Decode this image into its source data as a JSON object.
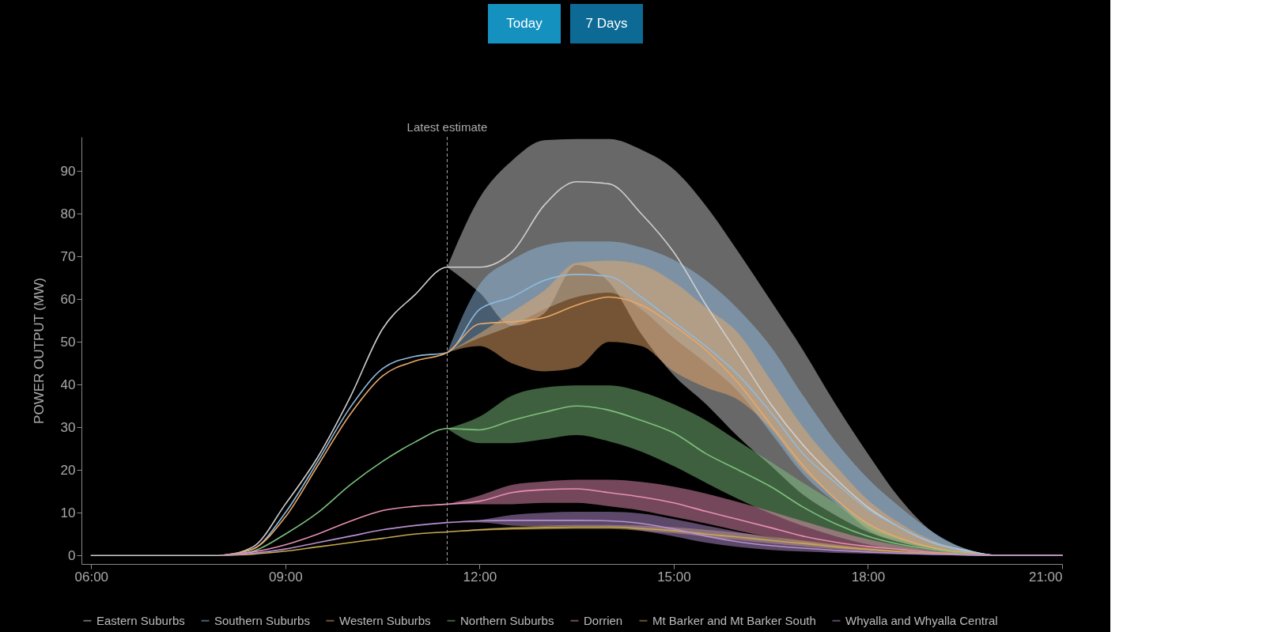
{
  "chart_data": {
    "type": "line",
    "ylabel": "POWER OUTPUT (MW)",
    "annotations": [
      "Today",
      "7 Days"
    ],
    "x": [
      6,
      7,
      8,
      8.5,
      9,
      9.5,
      10,
      10.5,
      11,
      11.5,
      12,
      12.5,
      13,
      13.5,
      14,
      14.5,
      15,
      15.5,
      16,
      16.5,
      17,
      17.5,
      18,
      18.5,
      19,
      19.5,
      20,
      21
    ],
    "xlim": [
      5.85,
      21
    ],
    "xticks": [
      {
        "value": 6,
        "label": "06:00"
      },
      {
        "value": 9,
        "label": "09:00"
      },
      {
        "value": 12,
        "label": "12:00"
      },
      {
        "value": 15,
        "label": "15:00"
      },
      {
        "value": 18,
        "label": "18:00"
      },
      {
        "value": 21,
        "label": "21:00"
      }
    ],
    "ylim": [
      -2,
      98
    ],
    "yticks": [
      0,
      10,
      20,
      30,
      40,
      50,
      60,
      70,
      80,
      90
    ],
    "grid": false,
    "legend": "bottom",
    "line_style": "solid",
    "marker": "none",
    "ref_lines": [
      {
        "axis": "x",
        "value": 11.5,
        "label": "Latest estimate",
        "color": "#aaaaaa",
        "line_style": "dashed"
      }
    ],
    "series": [
      {
        "name": "Eastern Suburbs",
        "color": "#cfcfcf",
        "values": [
          0,
          0,
          0,
          2,
          12,
          23,
          37,
          53,
          61,
          67.5,
          67.5,
          71,
          82,
          87.5,
          87,
          80,
          71,
          58.6,
          47,
          35.4,
          25.8,
          18,
          11.3,
          6.5,
          3,
          1.2,
          0,
          0
        ],
        "lower": [
          null,
          null,
          null,
          null,
          null,
          null,
          null,
          null,
          null,
          67.5,
          61.5,
          53.8,
          56.7,
          68,
          64,
          51.8,
          42.2,
          35.4,
          27.7,
          21,
          14.2,
          9.4,
          5.5,
          3,
          1.6,
          0.7,
          0,
          null
        ],
        "upper": [
          null,
          null,
          null,
          null,
          null,
          null,
          null,
          null,
          null,
          67.5,
          83.7,
          92.4,
          97.2,
          97.5,
          97.5,
          95,
          90.4,
          81.8,
          71,
          59.6,
          48,
          35.4,
          23.8,
          13.2,
          5.5,
          1.6,
          0,
          null
        ]
      },
      {
        "name": "Southern Suburbs",
        "color": "#8fbbe0",
        "values": [
          null,
          null,
          0,
          1.5,
          10,
          22,
          34.6,
          43.7,
          46.6,
          47.5,
          57.6,
          60.5,
          64.4,
          65.8,
          65.3,
          60.5,
          54.7,
          48.9,
          42.2,
          33.5,
          23.8,
          17,
          10.8,
          6.5,
          3.1,
          1,
          0,
          0
        ],
        "lower": [
          null,
          null,
          null,
          null,
          null,
          null,
          null,
          null,
          null,
          47.5,
          50.9,
          53.8,
          57.6,
          60.5,
          61.5,
          57.6,
          50.9,
          45,
          38.3,
          28.7,
          19,
          12.3,
          6.5,
          3.6,
          1.6,
          0.5,
          0,
          null
        ],
        "upper": [
          null,
          null,
          null,
          null,
          null,
          null,
          null,
          null,
          null,
          47.5,
          63.4,
          69.2,
          72.6,
          73.5,
          73.5,
          72.1,
          69.2,
          64.4,
          57.6,
          48.9,
          37.4,
          26.7,
          18,
          11.3,
          5.5,
          1.6,
          0,
          null
        ]
      },
      {
        "name": "Western Suburbs",
        "color": "#e8a868",
        "values": [
          null,
          null,
          0,
          1.5,
          9,
          21,
          33,
          42,
          45.5,
          47.5,
          54.2,
          54.7,
          55.7,
          58.6,
          60.5,
          58.6,
          53.8,
          48,
          40.3,
          30.6,
          21,
          13.2,
          7.4,
          4,
          1.8,
          0.7,
          0,
          0
        ],
        "lower": [
          null,
          null,
          null,
          null,
          null,
          null,
          null,
          null,
          null,
          47.5,
          49,
          45,
          43.1,
          44,
          50,
          49,
          43.1,
          39.3,
          36.4,
          29.6,
          20,
          13.2,
          6,
          3.2,
          1.4,
          0.5,
          0,
          null
        ],
        "upper": [
          null,
          null,
          null,
          null,
          null,
          null,
          null,
          null,
          null,
          47.5,
          52,
          57,
          62,
          68.5,
          69,
          68,
          64,
          58,
          52,
          41,
          30,
          21,
          13,
          7.5,
          3.5,
          1.2,
          0,
          null
        ]
      },
      {
        "name": "Northern Suburbs",
        "color": "#7dc07d",
        "values": [
          null,
          null,
          0,
          1,
          5,
          10,
          16.5,
          22,
          26.5,
          29.7,
          29.4,
          31.6,
          33.5,
          35,
          34,
          31.6,
          28.7,
          23.8,
          20,
          16.1,
          11.3,
          7.4,
          4.5,
          2.6,
          1.4,
          0.5,
          0,
          0
        ],
        "lower": [
          null,
          null,
          null,
          null,
          null,
          null,
          null,
          null,
          null,
          29.7,
          26.3,
          26.3,
          27.2,
          28.2,
          26.7,
          24.3,
          20.9,
          17,
          13.2,
          9.8,
          6.9,
          4.5,
          2.6,
          1.4,
          0.7,
          0.3,
          0,
          null
        ],
        "upper": [
          null,
          null,
          null,
          null,
          null,
          null,
          null,
          null,
          null,
          29.7,
          32.5,
          37.4,
          39.3,
          39.8,
          39.8,
          38.3,
          35.4,
          31.6,
          26.7,
          21.9,
          17,
          12.3,
          7.4,
          4,
          2.1,
          0.7,
          0,
          null
        ]
      },
      {
        "name": "Dorrien",
        "color": "#e88fb4",
        "values": [
          null,
          null,
          0,
          0.8,
          2.5,
          5,
          8,
          10.5,
          11.5,
          12,
          12.7,
          14.7,
          15.4,
          15.6,
          14.7,
          13.7,
          12.3,
          10.3,
          8.4,
          6.5,
          4.5,
          3.1,
          2.1,
          1.4,
          0.7,
          0.3,
          0,
          0
        ],
        "lower": [
          null,
          null,
          null,
          null,
          null,
          null,
          null,
          null,
          null,
          12,
          12,
          12,
          12.3,
          12.3,
          11.5,
          10.5,
          9,
          7.5,
          5.8,
          4.3,
          3,
          2,
          1.3,
          0.8,
          0.4,
          0.2,
          0,
          null
        ],
        "upper": [
          null,
          null,
          null,
          null,
          null,
          null,
          null,
          null,
          null,
          12,
          14,
          16.5,
          17.3,
          17.7,
          17.7,
          17.2,
          16.1,
          14.5,
          12.5,
          10.3,
          8,
          5.8,
          3.8,
          2.3,
          1.2,
          0.5,
          0,
          null
        ]
      },
      {
        "name": "Mt Barker and Mt Barker South",
        "color": "#c8a850",
        "values": [
          null,
          null,
          0,
          0.3,
          1,
          2,
          3,
          4,
          5,
          5.5,
          6,
          6.3,
          6.5,
          6.6,
          6.6,
          6.3,
          5.8,
          5,
          4.3,
          3.5,
          2.8,
          2,
          1.4,
          0.9,
          0.5,
          0.2,
          0,
          0
        ],
        "lower": [
          null,
          null,
          null,
          null,
          null,
          null,
          null,
          null,
          null,
          5.5,
          5.8,
          6,
          6.1,
          6.2,
          6.2,
          5.8,
          5.2,
          4.4,
          3.6,
          2.8,
          2.1,
          1.5,
          1,
          0.6,
          0.3,
          0.1,
          0,
          null
        ],
        "upper": [
          null,
          null,
          null,
          null,
          null,
          null,
          null,
          null,
          null,
          5.5,
          6.2,
          6.7,
          7,
          7.1,
          7.1,
          7,
          6.6,
          6,
          5.3,
          4.4,
          3.5,
          2.6,
          1.8,
          1.1,
          0.6,
          0.3,
          0,
          null
        ]
      },
      {
        "name": "Whyalla and Whyalla Central",
        "color": "#b890d0",
        "values": [
          null,
          null,
          0,
          0.5,
          1.5,
          3,
          4.5,
          6,
          7,
          7.7,
          8.1,
          8.2,
          8.2,
          8.2,
          8.1,
          7.5,
          6.2,
          4.5,
          3.2,
          2.3,
          1.7,
          1.2,
          0.8,
          0.5,
          0.3,
          0.1,
          0,
          0
        ],
        "lower": [
          null,
          null,
          null,
          null,
          null,
          null,
          null,
          null,
          null,
          7.7,
          7.7,
          7,
          6.8,
          6.8,
          6.7,
          5.8,
          4.5,
          3,
          2,
          1.3,
          0.9,
          0.6,
          0.4,
          0.2,
          0.1,
          0,
          0,
          null
        ],
        "upper": [
          null,
          null,
          null,
          null,
          null,
          null,
          null,
          null,
          null,
          7.7,
          8.3,
          9.5,
          10,
          10.2,
          10.2,
          9.8,
          8.5,
          7,
          5.5,
          4.2,
          3.2,
          2.3,
          1.6,
          1,
          0.5,
          0.2,
          0,
          null
        ]
      }
    ]
  }
}
